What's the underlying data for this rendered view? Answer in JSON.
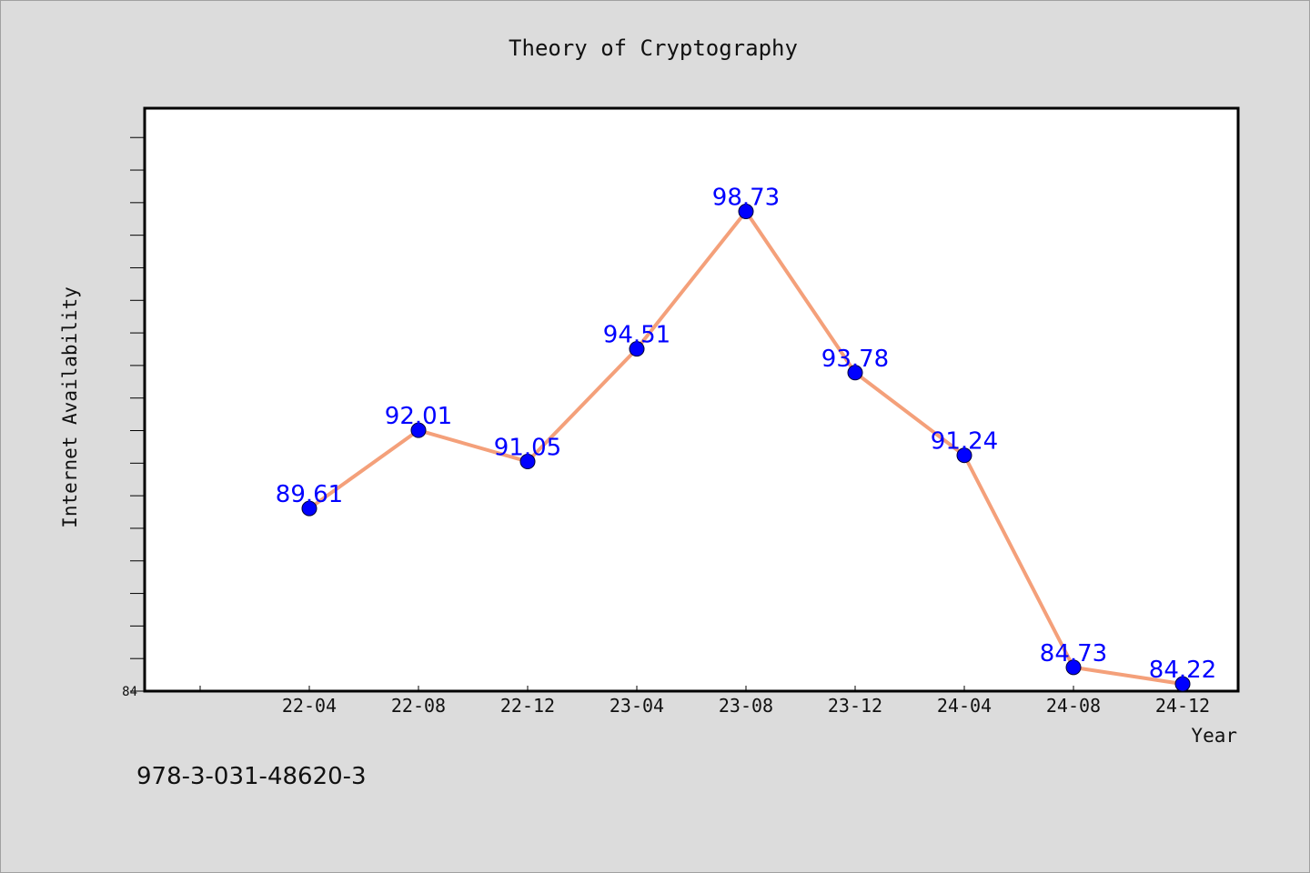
{
  "footer_text": "978-3-031-48620-3",
  "colors": {
    "background": "#dcdcdc",
    "plot_background": "#ffffff",
    "line": "#f4a07a",
    "marker": "#0000ff",
    "data_label": "#0000ff"
  },
  "chart_data": {
    "type": "line",
    "title": "Theory of Cryptography",
    "xlabel": "Year",
    "ylabel": "Internet Availability",
    "categories": [
      "22-04",
      "22-08",
      "22-12",
      "23-04",
      "23-08",
      "23-12",
      "24-04",
      "24-08",
      "24-12"
    ],
    "series": [
      {
        "values": [
          89.61,
          92.01,
          91.05,
          94.51,
          98.73,
          93.78,
          91.24,
          84.73,
          84.22
        ],
        "labels": [
          "89.61",
          "92.01",
          "91.05",
          "94.51",
          "98.73",
          "93.78",
          "91.24",
          "84.73",
          "84.22"
        ]
      }
    ],
    "ylim": [
      84,
      101.9
    ],
    "y_tick_step": 1,
    "y_tick_labels": [
      "84"
    ],
    "grid": false,
    "legend": "none"
  }
}
